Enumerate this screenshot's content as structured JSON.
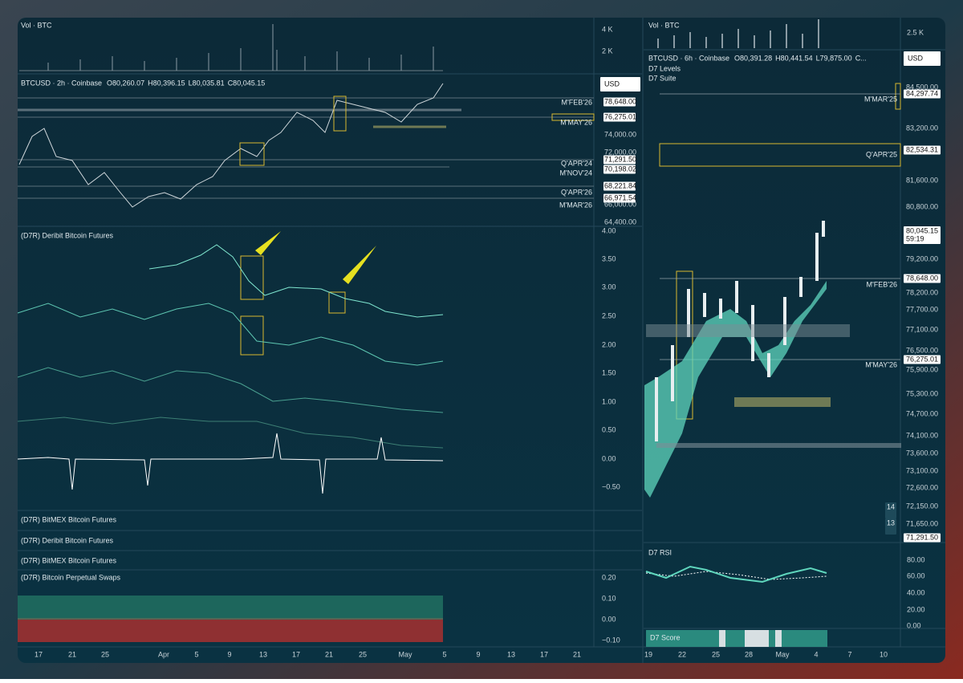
{
  "left": {
    "volume": {
      "title": "Vol · BTC",
      "axis": [
        "4 K",
        "2 K"
      ]
    },
    "price": {
      "header": "BTCUSD · 2h · Coinbase",
      "open": "O80,260.07",
      "high": "H80,396.15",
      "low": "L80,035.81",
      "close": "C80,045.15",
      "currency": "USD",
      "axis": [
        "78,648.00",
        "76,275.01",
        "74,000.00",
        "72,000.00",
        "71,291.50",
        "70,198.02",
        "68,221.84",
        "66,971.54",
        "66,000.00",
        "64,400.00"
      ],
      "levels": [
        "M'FEB'26",
        "M'MAY'26",
        "Q'APR'24",
        "M'NOV'24",
        "Q'APR'26",
        "M'MAR'26"
      ]
    },
    "futures": {
      "title": "(D7R) Deribit Bitcoin Futures",
      "axis": [
        "4.00",
        "3.50",
        "3.00",
        "2.50",
        "2.00",
        "1.50",
        "1.00",
        "0.50",
        "0.00",
        "−0.50"
      ]
    },
    "collapsed": [
      "(D7R) BitMEX Bitcoin Futures",
      "(D7R) Deribit Bitcoin Futures",
      "(D7R) BitMEX Bitcoin Futures"
    ],
    "swaps": {
      "title": "(D7R) Bitcoin Perpetual Swaps",
      "axis": [
        "0.20",
        "0.10",
        "0.00",
        "−0.10"
      ]
    },
    "dates": [
      "17",
      "21",
      "25",
      "Apr",
      "5",
      "9",
      "13",
      "17",
      "21",
      "25",
      "May",
      "5",
      "9",
      "13",
      "17",
      "21"
    ]
  },
  "right": {
    "volume": {
      "title": "Vol · BTC",
      "axis": [
        "2.5 K"
      ]
    },
    "price": {
      "header": "BTCUSD · 6h · Coinbase",
      "open": "O80,391.28",
      "high": "H80,441.54",
      "low": "L79,875.00",
      "close": "C...",
      "indicators": [
        "D7 Levels",
        "D7 Suite"
      ],
      "currency": "USD",
      "countdown": "59:19",
      "axis": [
        "84,500.00",
        "84,297.74",
        "83,200.00",
        "82,534.31",
        "81,600.00",
        "80,800.00",
        "80,045.15",
        "79,200.00",
        "78,648.00",
        "78,200.00",
        "77,700.00",
        "77,100.00",
        "76,500.00",
        "76,275.01",
        "75,900.00",
        "75,300.00",
        "74,700.00",
        "74,100.00",
        "73,600.00",
        "73,100.00",
        "72,600.00",
        "72,150.00",
        "71,650.00",
        "71,291.50"
      ],
      "levels": [
        "M'MAR'25",
        "Q'APR'25",
        "M'FEB'26",
        "M'MAY'26"
      ],
      "badges": [
        "14",
        "13"
      ]
    },
    "rsi": {
      "title": "D7 RSI",
      "axis": [
        "80.00",
        "60.00",
        "40.00",
        "20.00",
        "0.00"
      ]
    },
    "score": {
      "title": "D7 Score"
    },
    "dates": [
      "19",
      "22",
      "25",
      "28",
      "May",
      "4",
      "7",
      "10"
    ]
  }
}
